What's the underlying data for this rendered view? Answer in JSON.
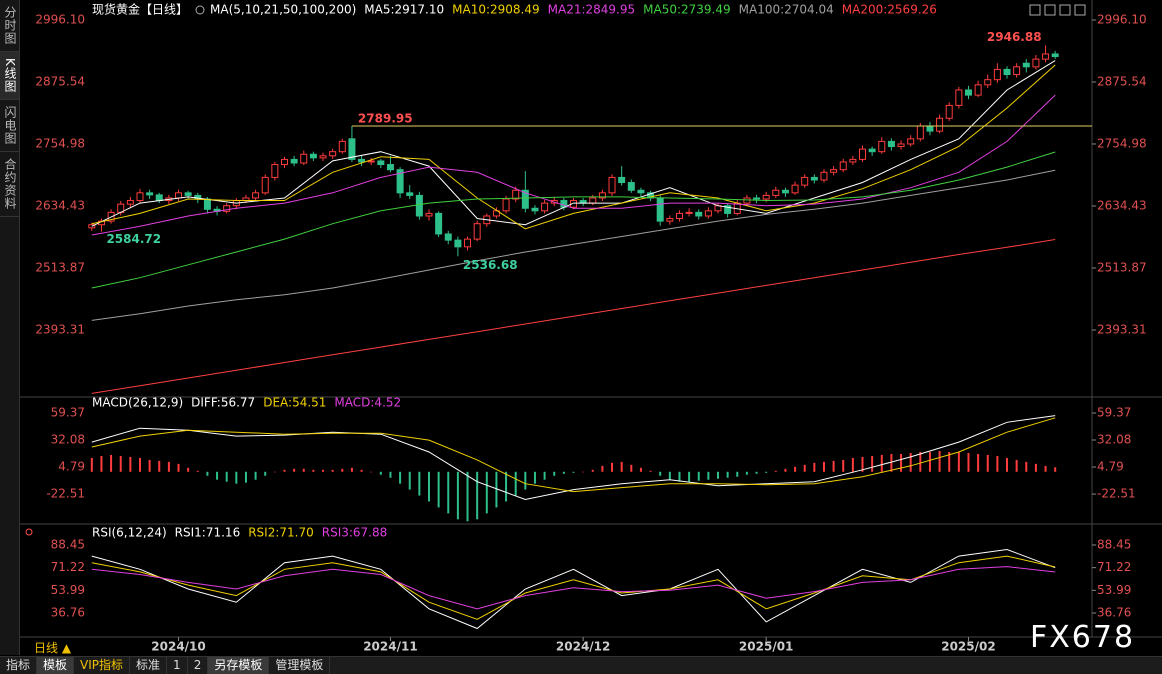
{
  "sidebar": [
    "分时图",
    "K线图",
    "闪电图",
    "合约资料"
  ],
  "period": "日线 ▲",
  "toolbar": [
    "指标",
    "模板",
    "VIP指标",
    "标准",
    "1",
    "2",
    "另存模板",
    "管理模板"
  ],
  "watermark": "FX678",
  "chart_data": [
    {
      "type": "candlestick",
      "title": "现货黄金【日线】",
      "indicator": "MA(5,10,21,50,100,200)",
      "up_color": "#ff3c3c",
      "down_color": "#2ec08a",
      "xlim": [
        -0.5,
        100.5
      ],
      "xticks": [
        {
          "value": 9,
          "label": "2024/10"
        },
        {
          "value": 31,
          "label": "2024/11"
        },
        {
          "value": 51,
          "label": "2024/12"
        },
        {
          "value": 70,
          "label": "2025/01"
        },
        {
          "value": 91,
          "label": "2025/02"
        }
      ],
      "ylim": [
        2266.9,
        3015.5
      ],
      "yticks": [
        {
          "value": 2996.1,
          "label": "2996.10"
        },
        2875.54,
        2754.98,
        2634.43,
        2513.87,
        2393.31
      ],
      "candles": [
        [
          2592,
          2602,
          2586,
          2598
        ],
        [
          2598,
          2610,
          2584.72,
          2605
        ],
        [
          2605,
          2628,
          2600,
          2622
        ],
        [
          2622,
          2644,
          2616,
          2638
        ],
        [
          2638,
          2652,
          2630,
          2645
        ],
        [
          2645,
          2668,
          2640,
          2660
        ],
        [
          2660,
          2666,
          2648,
          2656
        ],
        [
          2656,
          2660,
          2640,
          2645
        ],
        [
          2645,
          2656,
          2638,
          2650
        ],
        [
          2650,
          2666,
          2644,
          2660
        ],
        [
          2660,
          2664,
          2648,
          2655
        ],
        [
          2655,
          2660,
          2640,
          2648
        ],
        [
          2648,
          2652,
          2620,
          2628
        ],
        [
          2628,
          2634,
          2616,
          2624
        ],
        [
          2624,
          2640,
          2620,
          2635
        ],
        [
          2635,
          2650,
          2628,
          2645
        ],
        [
          2645,
          2656,
          2640,
          2650
        ],
        [
          2650,
          2666,
          2644,
          2660
        ],
        [
          2660,
          2696,
          2656,
          2690
        ],
        [
          2690,
          2720,
          2684,
          2715
        ],
        [
          2715,
          2730,
          2708,
          2725
        ],
        [
          2725,
          2732,
          2712,
          2718
        ],
        [
          2718,
          2742,
          2714,
          2735
        ],
        [
          2735,
          2740,
          2722,
          2728
        ],
        [
          2728,
          2738,
          2722,
          2732
        ],
        [
          2732,
          2746,
          2726,
          2740
        ],
        [
          2740,
          2765,
          2736,
          2760
        ],
        [
          2765,
          2789.95,
          2720,
          2725
        ],
        [
          2725,
          2732,
          2712,
          2720
        ],
        [
          2720,
          2728,
          2714,
          2722
        ],
        [
          2722,
          2726,
          2708,
          2715
        ],
        [
          2715,
          2732,
          2700,
          2705
        ],
        [
          2705,
          2710,
          2650,
          2660
        ],
        [
          2660,
          2675,
          2648,
          2655
        ],
        [
          2655,
          2662,
          2608,
          2615
        ],
        [
          2615,
          2628,
          2606,
          2620
        ],
        [
          2620,
          2624,
          2574,
          2580
        ],
        [
          2580,
          2586,
          2560,
          2568
        ],
        [
          2568,
          2575,
          2536.68,
          2555
        ],
        [
          2555,
          2575,
          2548,
          2570
        ],
        [
          2570,
          2606,
          2566,
          2600
        ],
        [
          2600,
          2620,
          2594,
          2615
        ],
        [
          2615,
          2632,
          2610,
          2625
        ],
        [
          2625,
          2654,
          2620,
          2648
        ],
        [
          2648,
          2672,
          2642,
          2665
        ],
        [
          2665,
          2702,
          2622,
          2630
        ],
        [
          2630,
          2636,
          2618,
          2625
        ],
        [
          2625,
          2646,
          2620,
          2640
        ],
        [
          2640,
          2652,
          2634,
          2645
        ],
        [
          2645,
          2650,
          2626,
          2632
        ],
        [
          2632,
          2650,
          2628,
          2645
        ],
        [
          2645,
          2650,
          2634,
          2640
        ],
        [
          2640,
          2656,
          2636,
          2650
        ],
        [
          2650,
          2666,
          2644,
          2660
        ],
        [
          2660,
          2696,
          2654,
          2690
        ],
        [
          2690,
          2712,
          2674,
          2680
        ],
        [
          2680,
          2686,
          2660,
          2665
        ],
        [
          2665,
          2670,
          2652,
          2660
        ],
        [
          2660,
          2664,
          2644,
          2650
        ],
        [
          2650,
          2656,
          2596,
          2605
        ],
        [
          2605,
          2616,
          2598,
          2610
        ],
        [
          2610,
          2626,
          2604,
          2620
        ],
        [
          2620,
          2630,
          2614,
          2622
        ],
        [
          2622,
          2628,
          2608,
          2615
        ],
        [
          2615,
          2632,
          2610,
          2625
        ],
        [
          2625,
          2640,
          2620,
          2635
        ],
        [
          2635,
          2640,
          2612,
          2620
        ],
        [
          2620,
          2646,
          2616,
          2640
        ],
        [
          2640,
          2656,
          2634,
          2650
        ],
        [
          2650,
          2656,
          2640,
          2648
        ],
        [
          2648,
          2662,
          2642,
          2655
        ],
        [
          2655,
          2672,
          2650,
          2665
        ],
        [
          2665,
          2670,
          2652,
          2660
        ],
        [
          2660,
          2682,
          2656,
          2675
        ],
        [
          2675,
          2696,
          2670,
          2690
        ],
        [
          2690,
          2696,
          2678,
          2685
        ],
        [
          2685,
          2706,
          2680,
          2700
        ],
        [
          2700,
          2712,
          2694,
          2705
        ],
        [
          2705,
          2726,
          2700,
          2720
        ],
        [
          2720,
          2732,
          2714,
          2725
        ],
        [
          2725,
          2752,
          2720,
          2745
        ],
        [
          2745,
          2750,
          2732,
          2740
        ],
        [
          2740,
          2768,
          2736,
          2760
        ],
        [
          2760,
          2766,
          2742,
          2750
        ],
        [
          2750,
          2762,
          2744,
          2755
        ],
        [
          2755,
          2772,
          2750,
          2765
        ],
        [
          2765,
          2796,
          2760,
          2790
        ],
        [
          2790,
          2798,
          2772,
          2780
        ],
        [
          2780,
          2812,
          2776,
          2805
        ],
        [
          2805,
          2836,
          2800,
          2830
        ],
        [
          2830,
          2866,
          2824,
          2860
        ],
        [
          2860,
          2868,
          2842,
          2850
        ],
        [
          2850,
          2878,
          2846,
          2870
        ],
        [
          2870,
          2890,
          2864,
          2880
        ],
        [
          2880,
          2912,
          2874,
          2900
        ],
        [
          2900,
          2906,
          2882,
          2890
        ],
        [
          2890,
          2912,
          2884,
          2905
        ],
        [
          2912,
          2920,
          2894,
          2905
        ],
        [
          2905,
          2928,
          2900,
          2920
        ],
        [
          2920,
          2946.88,
          2914,
          2930
        ],
        [
          2930,
          2936,
          2920,
          2925
        ]
      ],
      "line_x": [
        0,
        5,
        10,
        15,
        20,
        25,
        30,
        35,
        40,
        45,
        50,
        55,
        60,
        65,
        70,
        75,
        80,
        85,
        90,
        95,
        100
      ],
      "series": [
        {
          "label": "MA5:2917.10",
          "color": "#ffffff",
          "values": [
            2595,
            2640,
            2652,
            2640,
            2650,
            2722,
            2740,
            2712,
            2610,
            2598,
            2640,
            2640,
            2670,
            2635,
            2620,
            2650,
            2680,
            2725,
            2765,
            2860,
            2917.1
          ]
        },
        {
          "label": "MA10:2908.49",
          "color": "#f0d000",
          "values": [
            2600,
            2620,
            2648,
            2645,
            2645,
            2700,
            2730,
            2725,
            2650,
            2590,
            2620,
            2640,
            2660,
            2650,
            2625,
            2640,
            2668,
            2705,
            2750,
            2825,
            2908.49
          ]
        },
        {
          "label": "MA21:2849.95",
          "color": "#e040e0",
          "values": [
            2578,
            2595,
            2615,
            2630,
            2640,
            2660,
            2690,
            2710,
            2700,
            2660,
            2630,
            2630,
            2640,
            2640,
            2635,
            2638,
            2648,
            2670,
            2700,
            2760,
            2849.95
          ]
        },
        {
          "label": "MA50:2739.49",
          "color": "#40d040",
          "values": [
            2475,
            2495,
            2520,
            2545,
            2570,
            2600,
            2625,
            2640,
            2648,
            2650,
            2652,
            2652,
            2650,
            2648,
            2645,
            2646,
            2652,
            2665,
            2685,
            2710,
            2739.49
          ]
        },
        {
          "label": "MA100:2704.04",
          "color": "#a0a0a0",
          "values": [
            2412,
            2425,
            2440,
            2452,
            2462,
            2475,
            2492,
            2510,
            2528,
            2545,
            2560,
            2575,
            2590,
            2605,
            2618,
            2628,
            2640,
            2655,
            2670,
            2685,
            2704.04
          ]
        },
        {
          "label": "MA200:2569.26",
          "color": "#ff4040",
          "values": [
            2270,
            2285,
            2300,
            2315,
            2330,
            2345,
            2360,
            2375,
            2390,
            2405,
            2420,
            2435,
            2450,
            2465,
            2480,
            2495,
            2510,
            2525,
            2540,
            2554,
            2569.26
          ]
        }
      ]
    },
    {
      "type": "macd",
      "title": "MACD(26,12,9)",
      "xlim": [
        -0.5,
        100.5
      ],
      "ylim": [
        -50.7,
        74.5
      ],
      "yticks": [
        59.37,
        32.08,
        4.79,
        -22.51
      ],
      "histogram_label": "MACD:4.52",
      "histogram_label_color": "#e040e0",
      "up_color": "#ff3c3c",
      "down_color": "#2ec08a",
      "histogram": [
        14,
        16,
        17,
        16,
        15,
        14,
        12,
        11,
        10,
        8,
        4,
        1,
        -4,
        -8,
        -10,
        -12,
        -11,
        -8,
        -4,
        0,
        2,
        3,
        3,
        2,
        2,
        2,
        3,
        4,
        2,
        0,
        -3,
        -6,
        -12,
        -18,
        -24,
        -30,
        -36,
        -42,
        -48,
        -50,
        -48,
        -42,
        -36,
        -30,
        -24,
        -18,
        -12,
        -8,
        -4,
        -2,
        -1,
        0,
        2,
        6,
        9,
        10,
        7,
        4,
        1,
        -4,
        -8,
        -10,
        -10,
        -9,
        -8,
        -7,
        -6,
        -5,
        -3,
        -2,
        -1,
        1,
        3,
        5,
        7,
        9,
        10,
        11,
        12,
        14,
        15,
        16,
        17,
        18,
        18,
        19,
        20,
        20,
        21,
        20,
        20,
        19,
        18,
        17,
        16,
        14,
        12,
        10,
        8,
        6,
        4.52
      ],
      "line_x": [
        0,
        5,
        10,
        15,
        20,
        25,
        30,
        35,
        40,
        45,
        50,
        55,
        60,
        65,
        70,
        75,
        80,
        85,
        90,
        95,
        100
      ],
      "series": [
        {
          "label": "DIFF:56.77",
          "color": "#ffffff",
          "values": [
            30,
            44,
            42,
            36,
            37,
            40,
            38,
            20,
            -10,
            -28,
            -18,
            -12,
            -8,
            -14,
            -12,
            -10,
            2,
            15,
            30,
            50,
            56.77
          ]
        },
        {
          "label": "DEA:54.51",
          "color": "#f0d000",
          "values": [
            25,
            36,
            42,
            40,
            38,
            39,
            39,
            32,
            12,
            -12,
            -20,
            -16,
            -12,
            -12,
            -13,
            -12,
            -5,
            6,
            20,
            40,
            54.51
          ]
        }
      ]
    },
    {
      "type": "line",
      "title": "RSI(6,12,24)",
      "xlim": [
        -0.5,
        100.5
      ],
      "ylim": [
        20.06,
        102.1
      ],
      "yticks": [
        88.45,
        71.22,
        53.99,
        36.76
      ],
      "line_x": [
        0,
        5,
        10,
        15,
        20,
        25,
        30,
        35,
        40,
        45,
        50,
        55,
        60,
        65,
        70,
        75,
        80,
        85,
        90,
        95,
        100
      ],
      "series": [
        {
          "label": "RSI1:71.16",
          "color": "#ffffff",
          "values": [
            80,
            70,
            55,
            45,
            75,
            80,
            70,
            40,
            25,
            55,
            70,
            50,
            55,
            70,
            30,
            50,
            70,
            60,
            80,
            85,
            71.16
          ]
        },
        {
          "label": "RSI2:71.70",
          "color": "#f0d000",
          "values": [
            75,
            68,
            58,
            50,
            70,
            75,
            68,
            45,
            32,
            52,
            62,
            52,
            55,
            62,
            40,
            52,
            65,
            62,
            75,
            80,
            71.7
          ]
        },
        {
          "label": "RSI3:67.88",
          "color": "#e040e0",
          "values": [
            70,
            66,
            60,
            55,
            65,
            70,
            66,
            50,
            40,
            50,
            56,
            53,
            54,
            58,
            48,
            53,
            60,
            62,
            70,
            72,
            67.88
          ]
        }
      ]
    }
  ]
}
